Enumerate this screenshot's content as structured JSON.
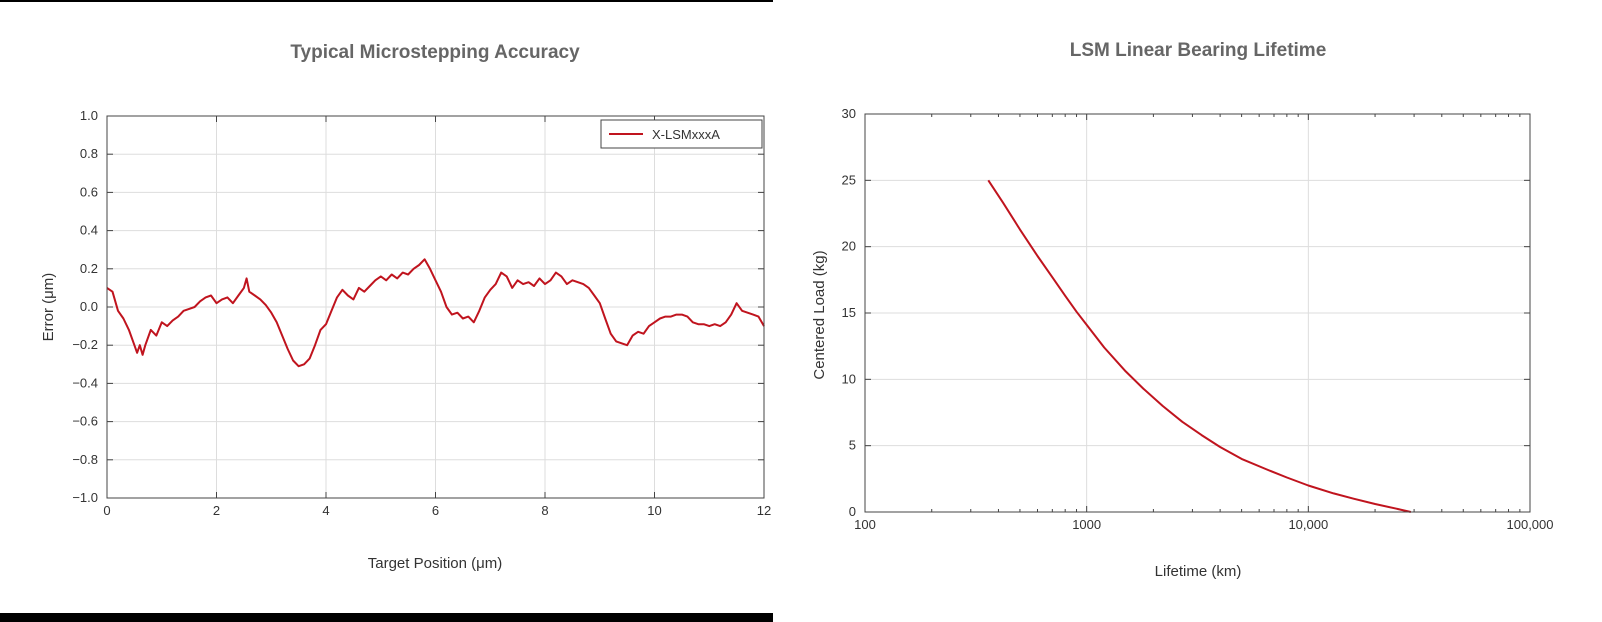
{
  "chart_data": [
    {
      "type": "line",
      "title": "Typical Microstepping Accuracy",
      "xlabel": "Target Position (μm)",
      "ylabel": "Error (μm)",
      "xlim": [
        0,
        12
      ],
      "ylim": [
        -1.0,
        1.0
      ],
      "grid": true,
      "legend": "top-right",
      "xticks": [
        0,
        2,
        4,
        6,
        8,
        10,
        12
      ],
      "xtick_labels": [
        "0",
        "2",
        "4",
        "6",
        "8",
        "10",
        "12"
      ],
      "yticks": [
        -1.0,
        -0.8,
        -0.6,
        -0.4,
        -0.2,
        0.0,
        0.2,
        0.4,
        0.6,
        0.8,
        1.0
      ],
      "ytick_labels": [
        "−1.0",
        "−0.8",
        "−0.6",
        "−0.4",
        "−0.2",
        "0.0",
        "0.2",
        "0.4",
        "0.6",
        "0.8",
        "1.0"
      ],
      "series": [
        {
          "name": "X-LSMxxxA",
          "color": "#c0141e",
          "x": [
            0,
            0.1,
            0.2,
            0.3,
            0.4,
            0.5,
            0.55,
            0.6,
            0.65,
            0.7,
            0.8,
            0.9,
            1.0,
            1.1,
            1.2,
            1.3,
            1.4,
            1.5,
            1.6,
            1.7,
            1.8,
            1.9,
            2.0,
            2.1,
            2.2,
            2.3,
            2.4,
            2.5,
            2.55,
            2.6,
            2.7,
            2.8,
            2.9,
            3.0,
            3.1,
            3.2,
            3.3,
            3.4,
            3.5,
            3.6,
            3.7,
            3.8,
            3.9,
            4.0,
            4.1,
            4.2,
            4.3,
            4.4,
            4.5,
            4.6,
            4.7,
            4.8,
            4.9,
            5.0,
            5.1,
            5.2,
            5.3,
            5.4,
            5.5,
            5.6,
            5.7,
            5.8,
            5.9,
            6.0,
            6.1,
            6.2,
            6.3,
            6.4,
            6.5,
            6.6,
            6.7,
            6.8,
            6.9,
            7.0,
            7.1,
            7.2,
            7.3,
            7.4,
            7.5,
            7.6,
            7.7,
            7.8,
            7.9,
            8.0,
            8.1,
            8.2,
            8.3,
            8.4,
            8.5,
            8.6,
            8.7,
            8.8,
            8.9,
            9.0,
            9.1,
            9.2,
            9.3,
            9.4,
            9.5,
            9.6,
            9.7,
            9.8,
            9.9,
            10.0,
            10.1,
            10.2,
            10.3,
            10.4,
            10.5,
            10.6,
            10.7,
            10.8,
            10.9,
            11.0,
            11.1,
            11.2,
            11.3,
            11.4,
            11.5,
            11.6,
            11.7,
            11.8,
            11.9,
            12.0
          ],
          "y": [
            0.1,
            0.08,
            -0.02,
            -0.06,
            -0.12,
            -0.2,
            -0.24,
            -0.2,
            -0.25,
            -0.2,
            -0.12,
            -0.15,
            -0.08,
            -0.1,
            -0.07,
            -0.05,
            -0.02,
            -0.01,
            0.0,
            0.03,
            0.05,
            0.06,
            0.02,
            0.04,
            0.05,
            0.02,
            0.06,
            0.1,
            0.15,
            0.08,
            0.06,
            0.04,
            0.01,
            -0.03,
            -0.08,
            -0.15,
            -0.22,
            -0.28,
            -0.31,
            -0.3,
            -0.27,
            -0.2,
            -0.12,
            -0.09,
            -0.02,
            0.05,
            0.09,
            0.06,
            0.04,
            0.1,
            0.08,
            0.11,
            0.14,
            0.16,
            0.14,
            0.17,
            0.15,
            0.18,
            0.17,
            0.2,
            0.22,
            0.25,
            0.2,
            0.14,
            0.08,
            0.0,
            -0.04,
            -0.03,
            -0.06,
            -0.05,
            -0.08,
            -0.02,
            0.05,
            0.09,
            0.12,
            0.18,
            0.16,
            0.1,
            0.14,
            0.12,
            0.13,
            0.11,
            0.15,
            0.12,
            0.14,
            0.18,
            0.16,
            0.12,
            0.14,
            0.13,
            0.12,
            0.1,
            0.06,
            0.02,
            -0.06,
            -0.14,
            -0.18,
            -0.19,
            -0.2,
            -0.15,
            -0.13,
            -0.14,
            -0.1,
            -0.08,
            -0.06,
            -0.05,
            -0.05,
            -0.04,
            -0.04,
            -0.05,
            -0.08,
            -0.09,
            -0.09,
            -0.1,
            -0.09,
            -0.1,
            -0.08,
            -0.04,
            0.02,
            -0.02,
            -0.03,
            -0.04,
            -0.05,
            -0.1
          ]
        }
      ]
    },
    {
      "type": "line",
      "title": "LSM Linear Bearing Lifetime",
      "xlabel": "Lifetime (km)",
      "ylabel": "Centered Load (kg)",
      "xscale": "log",
      "xlim": [
        100,
        100000
      ],
      "ylim": [
        0,
        30
      ],
      "grid": true,
      "xticks": [
        100,
        1000,
        10000,
        100000
      ],
      "xtick_labels": [
        "100",
        "1000",
        "10,000",
        "100,000"
      ],
      "yticks": [
        0,
        5,
        10,
        15,
        20,
        25,
        30
      ],
      "ytick_labels": [
        "0",
        "5",
        "10",
        "15",
        "20",
        "25",
        "30"
      ],
      "series": [
        {
          "color": "#c0141e",
          "x": [
            360,
            420,
            500,
            600,
            700,
            800,
            900,
            1000,
            1200,
            1500,
            1800,
            2200,
            2700,
            3300,
            4000,
            5000,
            6500,
            8000,
            10000,
            13000,
            16000,
            20000,
            25000,
            29000
          ],
          "y": [
            25.0,
            23.3,
            21.3,
            19.3,
            17.7,
            16.3,
            15.1,
            14.1,
            12.4,
            10.6,
            9.3,
            8.0,
            6.8,
            5.8,
            4.9,
            4.0,
            3.2,
            2.6,
            2.0,
            1.4,
            1.0,
            0.6,
            0.25,
            0.0
          ]
        }
      ]
    }
  ]
}
